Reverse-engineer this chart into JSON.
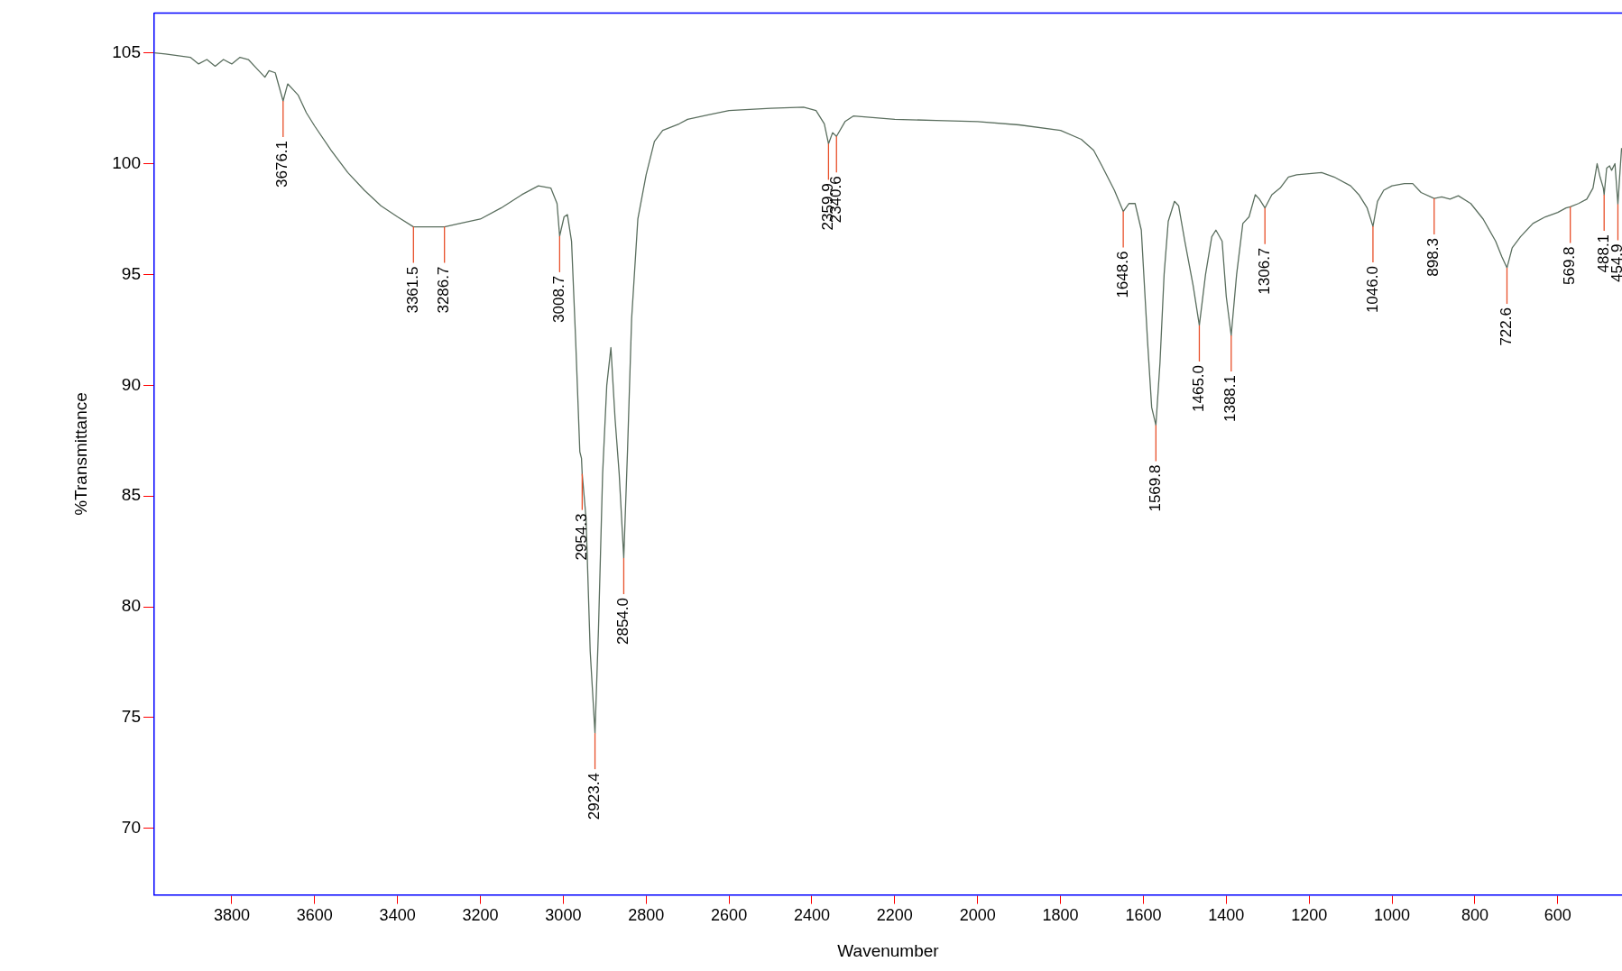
{
  "chart_data": {
    "type": "line",
    "xlabel": "Wavenumber",
    "ylabel": "%Transmittance",
    "xlim": [
      3987,
      445
    ],
    "ylim": [
      67,
      106.8
    ],
    "xticks": [
      3800,
      3600,
      3400,
      3200,
      3000,
      2800,
      2600,
      2400,
      2200,
      2000,
      1800,
      1600,
      1400,
      1200,
      1000,
      800,
      600
    ],
    "yticks": [
      70,
      75,
      80,
      85,
      90,
      95,
      100,
      105
    ],
    "marker": "none",
    "x": [
      3987,
      3960,
      3900,
      3880,
      3860,
      3840,
      3820,
      3800,
      3780,
      3760,
      3740,
      3720,
      3710,
      3695,
      3676.1,
      3665,
      3650,
      3640,
      3620,
      3600,
      3560,
      3520,
      3480,
      3440,
      3400,
      3361.5,
      3320,
      3286.7,
      3250,
      3200,
      3150,
      3100,
      3060,
      3030,
      3015,
      3008.7,
      2998,
      2990,
      2980,
      2970,
      2960,
      2956,
      2954.3,
      2945,
      2935,
      2923.4,
      2915,
      2905,
      2895,
      2885,
      2875,
      2865,
      2854.0,
      2845,
      2835,
      2820,
      2800,
      2780,
      2760,
      2720,
      2700,
      2650,
      2600,
      2500,
      2420,
      2390,
      2370,
      2359.9,
      2350,
      2340.6,
      2320,
      2300,
      2200,
      2100,
      2000,
      1900,
      1800,
      1750,
      1720,
      1700,
      1670,
      1648.6,
      1635,
      1620,
      1605,
      1590,
      1580,
      1569.8,
      1560,
      1550,
      1540,
      1525,
      1515,
      1500,
      1490,
      1480,
      1465.0,
      1450,
      1435,
      1425,
      1410,
      1400,
      1388.1,
      1375,
      1360,
      1345,
      1330,
      1320,
      1306.7,
      1290,
      1270,
      1250,
      1230,
      1200,
      1170,
      1140,
      1100,
      1080,
      1060,
      1046.0,
      1035,
      1020,
      1000,
      970,
      950,
      930,
      898.3,
      880,
      860,
      840,
      810,
      780,
      750,
      735,
      722.6,
      710,
      690,
      660,
      630,
      600,
      580,
      569.8,
      550,
      530,
      515,
      505,
      498,
      490,
      488.1,
      482,
      475,
      470,
      462,
      454.9,
      450,
      446
    ],
    "series": [
      {
        "color": "#5a6e5e",
        "values": [
          105.0,
          104.95,
          104.8,
          104.5,
          104.7,
          104.4,
          104.7,
          104.5,
          104.8,
          104.7,
          104.3,
          103.9,
          104.2,
          104.1,
          102.83,
          103.6,
          103.3,
          103.1,
          102.3,
          101.7,
          100.6,
          99.6,
          98.8,
          98.1,
          97.6,
          97.15,
          97.15,
          97.15,
          97.3,
          97.5,
          98.0,
          98.6,
          99.0,
          98.9,
          98.2,
          96.73,
          97.6,
          97.7,
          96.5,
          92,
          87,
          86.7,
          86.0,
          84,
          78,
          74.3,
          79,
          86,
          90,
          91.7,
          88.5,
          86,
          82.2,
          87,
          93,
          97.5,
          99.5,
          101.0,
          101.5,
          101.8,
          102.0,
          102.2,
          102.4,
          102.5,
          102.55,
          102.4,
          101.8,
          100.9,
          101.4,
          101.23,
          101.9,
          102.15,
          102.0,
          101.95,
          101.9,
          101.75,
          101.5,
          101.1,
          100.6,
          99.9,
          98.8,
          97.84,
          98.2,
          98.2,
          97,
          92,
          89,
          88.2,
          91,
          95,
          97.4,
          98.3,
          98.1,
          96.5,
          95.5,
          94.5,
          92.7,
          95,
          96.7,
          97.0,
          96.5,
          94,
          92.25,
          95,
          97.3,
          97.6,
          98.6,
          98.4,
          98.0,
          98.6,
          98.9,
          99.4,
          99.5,
          99.55,
          99.6,
          99.4,
          99.0,
          98.6,
          98.0,
          97.17,
          98.3,
          98.8,
          99.0,
          99.1,
          99.1,
          98.7,
          98.43,
          98.5,
          98.4,
          98.55,
          98.2,
          97.5,
          96.5,
          95.8,
          95.3,
          96.2,
          96.7,
          97.3,
          97.6,
          97.8,
          98.0,
          98.05,
          98.2,
          98.4,
          98.9,
          100.0,
          99.4,
          98.9,
          98.6,
          99.8,
          99.9,
          99.7,
          100.0,
          98.17,
          99.6,
          100.7
        ]
      }
    ],
    "annotations": [
      {
        "text": "3676.1",
        "x": 3676.1,
        "y": 102.83
      },
      {
        "text": "3361.5",
        "x": 3361.5,
        "y": 97.15
      },
      {
        "text": "3286.7",
        "x": 3286.7,
        "y": 97.15
      },
      {
        "text": "3008.7",
        "x": 3008.7,
        "y": 96.73
      },
      {
        "text": "2954.3",
        "x": 2954.3,
        "y": 86.0
      },
      {
        "text": "2923.4",
        "x": 2923.4,
        "y": 74.3
      },
      {
        "text": "2854.0",
        "x": 2854.0,
        "y": 82.2
      },
      {
        "text": "2359.9",
        "x": 2359.9,
        "y": 100.9
      },
      {
        "text": "2340.6",
        "x": 2340.6,
        "y": 101.23
      },
      {
        "text": "1648.6",
        "x": 1648.6,
        "y": 97.84
      },
      {
        "text": "1569.8",
        "x": 1569.8,
        "y": 88.2
      },
      {
        "text": "1465.0",
        "x": 1465.0,
        "y": 92.7
      },
      {
        "text": "1388.1",
        "x": 1388.1,
        "y": 92.25
      },
      {
        "text": "1306.7",
        "x": 1306.7,
        "y": 98.0
      },
      {
        "text": "1046.0",
        "x": 1046.0,
        "y": 97.17
      },
      {
        "text": "898.3",
        "x": 898.3,
        "y": 98.43
      },
      {
        "text": "722.6",
        "x": 722.6,
        "y": 95.3
      },
      {
        "text": "569.8",
        "x": 569.8,
        "y": 98.05
      },
      {
        "text": "488.1",
        "x": 488.1,
        "y": 98.6
      },
      {
        "text": "454.9",
        "x": 454.9,
        "y": 98.17
      }
    ]
  }
}
